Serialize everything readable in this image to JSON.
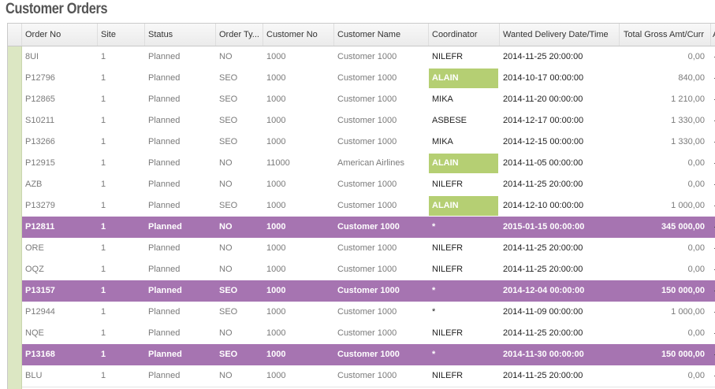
{
  "page": {
    "title": "Customer Orders"
  },
  "columns": [
    {
      "key": "order_no",
      "label": "Order No"
    },
    {
      "key": "site",
      "label": "Site"
    },
    {
      "key": "status",
      "label": "Status"
    },
    {
      "key": "order_type",
      "label": "Order Ty..."
    },
    {
      "key": "customer_no",
      "label": "Customer No"
    },
    {
      "key": "customer_name",
      "label": "Customer Name"
    },
    {
      "key": "coordinator",
      "label": "Coordinator"
    },
    {
      "key": "wanted_delivery",
      "label": "Wanted Delivery Date/Time"
    },
    {
      "key": "total_gross",
      "label": "Total Gross Amt/Curr"
    },
    {
      "key": "extra",
      "label": "A"
    }
  ],
  "rows": [
    {
      "order_no": "8UI",
      "site": "1",
      "status": "Planned",
      "order_type": "NO",
      "customer_no": "1000",
      "customer_name": "Customer 1000",
      "coordinator": "NILEFR",
      "wanted_delivery": "2014-11-25 20:00:00",
      "total_gross": "0,00",
      "selected": false,
      "coordinator_highlight": false
    },
    {
      "order_no": "P12796",
      "site": "1",
      "status": "Planned",
      "order_type": "SEO",
      "customer_no": "1000",
      "customer_name": "Customer 1000",
      "coordinator": "ALAIN",
      "wanted_delivery": "2014-10-17 00:00:00",
      "total_gross": "840,00",
      "selected": false,
      "coordinator_highlight": true
    },
    {
      "order_no": "P12865",
      "site": "1",
      "status": "Planned",
      "order_type": "SEO",
      "customer_no": "1000",
      "customer_name": "Customer 1000",
      "coordinator": "MIKA",
      "wanted_delivery": "2014-11-20 00:00:00",
      "total_gross": "1 210,00",
      "selected": false,
      "coordinator_highlight": false
    },
    {
      "order_no": "S10211",
      "site": "1",
      "status": "Planned",
      "order_type": "SEO",
      "customer_no": "1000",
      "customer_name": "Customer 1000",
      "coordinator": "ASBESE",
      "wanted_delivery": "2014-12-17 00:00:00",
      "total_gross": "1 330,00",
      "selected": false,
      "coordinator_highlight": false
    },
    {
      "order_no": "P13266",
      "site": "1",
      "status": "Planned",
      "order_type": "SEO",
      "customer_no": "1000",
      "customer_name": "Customer 1000",
      "coordinator": "MIKA",
      "wanted_delivery": "2014-12-15 00:00:00",
      "total_gross": "1 330,00",
      "selected": false,
      "coordinator_highlight": false
    },
    {
      "order_no": "P12915",
      "site": "1",
      "status": "Planned",
      "order_type": "NO",
      "customer_no": "11000",
      "customer_name": "American Airlines",
      "coordinator": "ALAIN",
      "wanted_delivery": "2014-11-05 00:00:00",
      "total_gross": "0,00",
      "selected": false,
      "coordinator_highlight": true
    },
    {
      "order_no": "AZB",
      "site": "1",
      "status": "Planned",
      "order_type": "NO",
      "customer_no": "1000",
      "customer_name": "Customer 1000",
      "coordinator": "NILEFR",
      "wanted_delivery": "2014-11-25 20:00:00",
      "total_gross": "0,00",
      "selected": false,
      "coordinator_highlight": false
    },
    {
      "order_no": "P13279",
      "site": "1",
      "status": "Planned",
      "order_type": "SEO",
      "customer_no": "1000",
      "customer_name": "Customer 1000",
      "coordinator": "ALAIN",
      "wanted_delivery": "2014-12-10 00:00:00",
      "total_gross": "1 000,00",
      "selected": false,
      "coordinator_highlight": true
    },
    {
      "order_no": "P12811",
      "site": "1",
      "status": "Planned",
      "order_type": "NO",
      "customer_no": "1000",
      "customer_name": "Customer 1000",
      "coordinator": "*",
      "wanted_delivery": "2015-01-15 00:00:00",
      "total_gross": "345 000,00",
      "selected": true,
      "coordinator_highlight": false
    },
    {
      "order_no": "ORE",
      "site": "1",
      "status": "Planned",
      "order_type": "NO",
      "customer_no": "1000",
      "customer_name": "Customer 1000",
      "coordinator": "NILEFR",
      "wanted_delivery": "2014-11-25 20:00:00",
      "total_gross": "0,00",
      "selected": false,
      "coordinator_highlight": false
    },
    {
      "order_no": "OQZ",
      "site": "1",
      "status": "Planned",
      "order_type": "NO",
      "customer_no": "1000",
      "customer_name": "Customer 1000",
      "coordinator": "NILEFR",
      "wanted_delivery": "2014-11-25 20:00:00",
      "total_gross": "0,00",
      "selected": false,
      "coordinator_highlight": false
    },
    {
      "order_no": "P13157",
      "site": "1",
      "status": "Planned",
      "order_type": "SEO",
      "customer_no": "1000",
      "customer_name": "Customer 1000",
      "coordinator": "*",
      "wanted_delivery": "2014-12-04 00:00:00",
      "total_gross": "150 000,00",
      "selected": true,
      "coordinator_highlight": false
    },
    {
      "order_no": "P12944",
      "site": "1",
      "status": "Planned",
      "order_type": "SEO",
      "customer_no": "1000",
      "customer_name": "Customer 1000",
      "coordinator": "*",
      "wanted_delivery": "2014-11-09 00:00:00",
      "total_gross": "1 000,00",
      "selected": false,
      "coordinator_highlight": false
    },
    {
      "order_no": "NQE",
      "site": "1",
      "status": "Planned",
      "order_type": "NO",
      "customer_no": "1000",
      "customer_name": "Customer 1000",
      "coordinator": "NILEFR",
      "wanted_delivery": "2014-11-25 20:00:00",
      "total_gross": "0,00",
      "selected": false,
      "coordinator_highlight": false
    },
    {
      "order_no": "P13168",
      "site": "1",
      "status": "Planned",
      "order_type": "SEO",
      "customer_no": "1000",
      "customer_name": "Customer 1000",
      "coordinator": "*",
      "wanted_delivery": "2014-11-30 00:00:00",
      "total_gross": "150 000,00",
      "selected": true,
      "coordinator_highlight": false
    },
    {
      "order_no": "BLU",
      "site": "1",
      "status": "Planned",
      "order_type": "NO",
      "customer_no": "1000",
      "customer_name": "Customer 1000",
      "coordinator": "NILEFR",
      "wanted_delivery": "2014-11-25 20:00:00",
      "total_gross": "0,00",
      "selected": false,
      "coordinator_highlight": false
    }
  ],
  "colors": {
    "selected_row": "#a674b1",
    "coordinator_highlight": "#b5cf73",
    "row_indicator": "#dce7c3"
  }
}
